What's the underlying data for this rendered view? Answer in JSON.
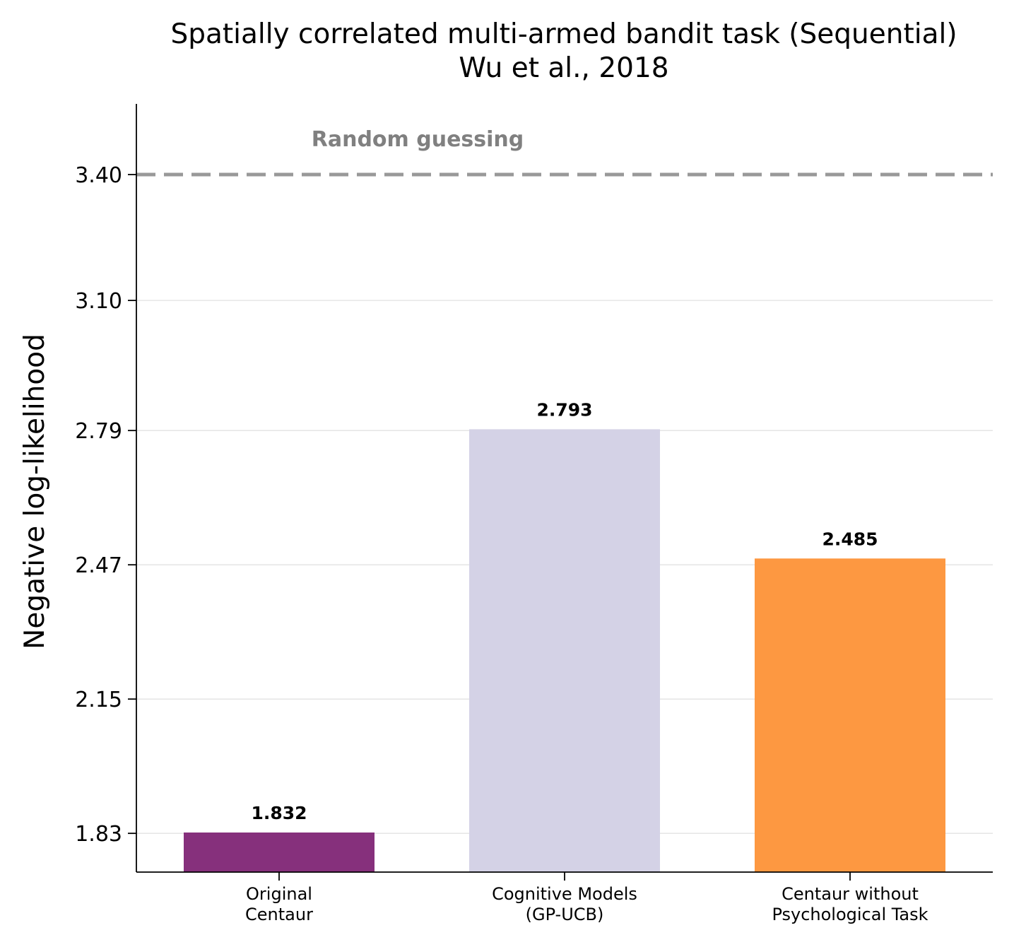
{
  "chart_data": {
    "type": "bar",
    "title": "Spatially correlated multi-armed bandit task (Sequential)",
    "subtitle": "Wu et al., 2018",
    "xlabel": "",
    "ylabel": "Negative log-likelihood",
    "categories": [
      [
        "Original",
        "Centaur"
      ],
      [
        "Cognitive Models",
        "(GP-UCB)"
      ],
      [
        "Centaur without",
        "Psychological Task"
      ]
    ],
    "values": [
      1.832,
      2.793,
      2.485
    ],
    "value_labels": [
      "1.832",
      "2.793",
      "2.485"
    ],
    "bar_colors": [
      "#86307c",
      "#d4d2e6",
      "#fd9841"
    ],
    "yticks": [
      1.83,
      2.15,
      2.47,
      2.79,
      3.1,
      3.4
    ],
    "ytick_labels": [
      "1.83",
      "2.15",
      "2.47",
      "2.79",
      "3.10",
      "3.40"
    ],
    "ylim": [
      1.737,
      3.57
    ],
    "grid": "horizontal",
    "reference_line": {
      "value": 3.4,
      "label": "Random guessing",
      "color": "#999999",
      "style": "dashed"
    }
  }
}
